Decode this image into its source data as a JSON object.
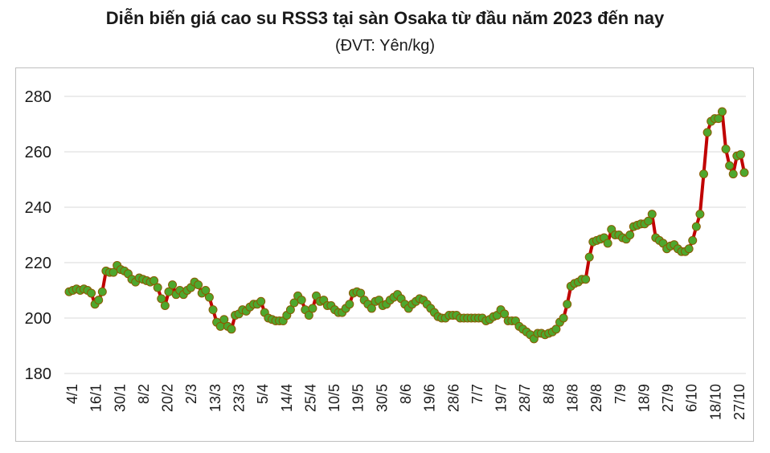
{
  "chart_data": {
    "type": "line",
    "title": "Diễn biến giá cao su RSS3 tại sàn Osaka từ đầu năm 2023 đến nay",
    "subtitle": "(ĐVT: Yên/kg)",
    "ylim": [
      180,
      280
    ],
    "yticks": [
      180,
      200,
      220,
      240,
      260,
      280
    ],
    "grid": "horizontal",
    "xtick_labels": [
      "4/1",
      "16/1",
      "30/1",
      "8/2",
      "20/2",
      "2/3",
      "13/3",
      "23/3",
      "5/4",
      "14/4",
      "25/4",
      "10/5",
      "19/5",
      "30/5",
      "8/6",
      "19/6",
      "28/6",
      "7/7",
      "19/7",
      "28/7",
      "8/8",
      "18/8",
      "29/8",
      "7/9",
      "18/9",
      "27/9",
      "6/10",
      "18/10",
      "27/10"
    ],
    "colors": {
      "line": "#c00000",
      "marker_fill": "#4ea72e",
      "marker_edge": "#8b5a00"
    },
    "series": [
      {
        "values": [
          209.5,
          210,
          210.5,
          210,
          210.5,
          210,
          209,
          205,
          206.5,
          209.5,
          217,
          216.5,
          216.5,
          219,
          217.5,
          217,
          216,
          214,
          213,
          214.5,
          214,
          213.5,
          213,
          213.5,
          211,
          207,
          204.5,
          209.5,
          212,
          208.5,
          210,
          208.5,
          210,
          211,
          213,
          212,
          209,
          210,
          207.5,
          203,
          198.5,
          197,
          199.5,
          197,
          196,
          201,
          201.5,
          203,
          202.5,
          204,
          205,
          205,
          206,
          202,
          200,
          199.5,
          199,
          199,
          199,
          201,
          203,
          205.5,
          208,
          206.5,
          203,
          201,
          203.5,
          208,
          206,
          206.5,
          204.5,
          204.5,
          203,
          202,
          202,
          203.5,
          205,
          209,
          209.5,
          209,
          206.5,
          205,
          203.5,
          206,
          206.5,
          204.5,
          205,
          206.5,
          207.5,
          208.5,
          207,
          205,
          203.5,
          205,
          206,
          207,
          206.5,
          205,
          203.5,
          202,
          200.5,
          200,
          200,
          201,
          201,
          201,
          200,
          200,
          200,
          200,
          200,
          200,
          200,
          199,
          199.5,
          200.5,
          201,
          203,
          201.5,
          199,
          199,
          199,
          197,
          196,
          195,
          194,
          192.5,
          194.5,
          194.5,
          194,
          194.5,
          195,
          196,
          198.5,
          200,
          205,
          211.5,
          212.5,
          213,
          214,
          214,
          222,
          227.5,
          228,
          228.5,
          229,
          227,
          232,
          230,
          230,
          229,
          228.5,
          230,
          233,
          233.5,
          234,
          234,
          235,
          237.5,
          229,
          228,
          227,
          225,
          226,
          226.5,
          225,
          224,
          224,
          225,
          228,
          233,
          237.5,
          252,
          267,
          271,
          272,
          272,
          274.5,
          261,
          255,
          252,
          258.5,
          259,
          252.5
        ]
      }
    ]
  }
}
